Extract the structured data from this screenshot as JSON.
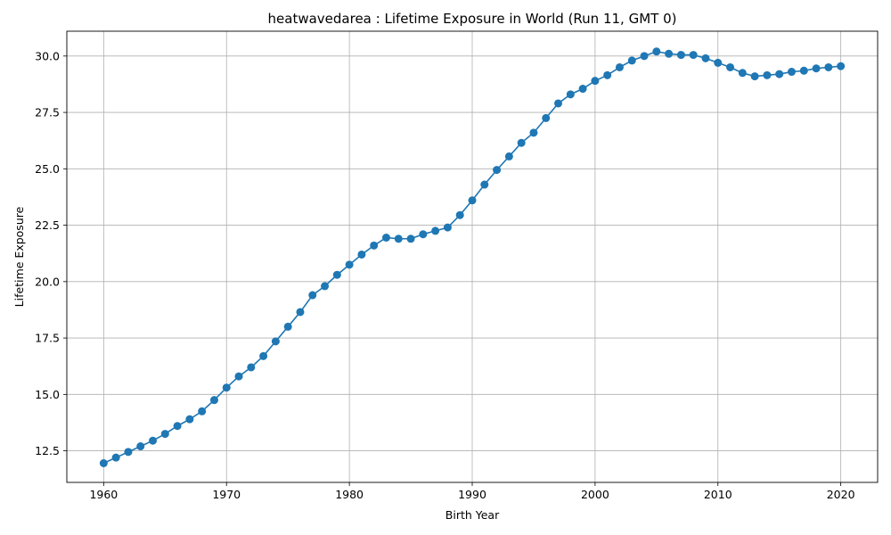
{
  "chart_data": {
    "type": "line",
    "title": "heatwavedarea : Lifetime Exposure in World (Run 11, GMT 0)",
    "xlabel": "Birth Year",
    "ylabel": "Lifetime Exposure",
    "xlim": [
      1957,
      2023
    ],
    "ylim": [
      11.1,
      31.1
    ],
    "xticks": [
      "1960",
      "1970",
      "1980",
      "1990",
      "2000",
      "2010",
      "2020"
    ],
    "yticks": [
      "12.5",
      "15.0",
      "17.5",
      "20.0",
      "22.5",
      "25.0",
      "27.5",
      "30.0"
    ],
    "grid": true,
    "color": "#1f77b4",
    "marker": "circle",
    "series": [
      {
        "x": [
          1960,
          1961,
          1962,
          1963,
          1964,
          1965,
          1966,
          1967,
          1968,
          1969,
          1970,
          1971,
          1972,
          1973,
          1974,
          1975,
          1976,
          1977,
          1978,
          1979,
          1980,
          1981,
          1982,
          1983,
          1984,
          1985,
          1986,
          1987,
          1988,
          1989,
          1990,
          1991,
          1992,
          1993,
          1994,
          1995,
          1996,
          1997,
          1998,
          1999,
          2000,
          2001,
          2002,
          2003,
          2004,
          2005,
          2006,
          2007,
          2008,
          2009,
          2010,
          2011,
          2012,
          2013,
          2014,
          2015,
          2016,
          2017,
          2018,
          2019,
          2020
        ],
        "y": [
          11.95,
          12.2,
          12.45,
          12.7,
          12.95,
          13.25,
          13.6,
          13.9,
          14.25,
          14.75,
          15.3,
          15.8,
          16.2,
          16.7,
          17.35,
          18.0,
          18.65,
          19.4,
          19.8,
          20.3,
          20.75,
          21.2,
          21.6,
          21.95,
          21.9,
          21.9,
          22.1,
          22.25,
          22.4,
          22.95,
          23.6,
          24.3,
          24.95,
          25.55,
          26.15,
          26.6,
          27.25,
          27.9,
          28.3,
          28.55,
          28.9,
          29.15,
          29.5,
          29.8,
          30.0,
          30.2,
          30.1,
          30.05,
          30.05,
          29.9,
          29.7,
          29.5,
          29.25,
          29.1,
          29.15,
          29.2,
          29.3,
          29.35,
          29.45,
          29.5,
          29.55
        ]
      }
    ]
  }
}
